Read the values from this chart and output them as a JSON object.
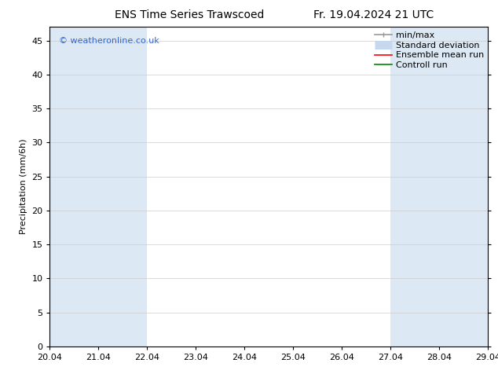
{
  "title_left": "ENS Time Series Trawscoed",
  "title_right": "Fr. 19.04.2024 21 UTC",
  "ylabel": "Precipitation (mm/6h)",
  "xlabel_ticks": [
    "20.04",
    "21.04",
    "22.04",
    "23.04",
    "24.04",
    "25.04",
    "26.04",
    "27.04",
    "28.04",
    "29.04"
  ],
  "yticks": [
    0,
    5,
    10,
    15,
    20,
    25,
    30,
    35,
    40,
    45
  ],
  "ylim": [
    0,
    47
  ],
  "xlim": [
    0,
    9
  ],
  "background_color": "#ffffff",
  "plot_bg_color": "#ffffff",
  "watermark": "© weatheronline.co.uk",
  "watermark_color": "#3366cc",
  "shaded_columns": [
    {
      "x_start": 0.0,
      "x_end": 1.0,
      "color": "#dce9f5"
    },
    {
      "x_start": 1.0,
      "x_end": 2.0,
      "color": "#dce9f5"
    },
    {
      "x_start": 7.0,
      "x_end": 8.0,
      "color": "#dce9f5"
    },
    {
      "x_start": 8.0,
      "x_end": 9.0,
      "color": "#dce9f5"
    }
  ],
  "legend_entries": [
    {
      "label": "min/max",
      "color": "#999999",
      "lw": 1.2,
      "ls": "-"
    },
    {
      "label": "Standard deviation",
      "color": "#c5d8ee",
      "lw": 8,
      "ls": "-"
    },
    {
      "label": "Ensemble mean run",
      "color": "#ff0000",
      "lw": 1.2,
      "ls": "-"
    },
    {
      "label": "Controll run",
      "color": "#008800",
      "lw": 1.2,
      "ls": "-"
    }
  ],
  "grid_color": "#cccccc",
  "tick_color": "#000000",
  "axis_color": "#000000",
  "font_size_title": 10,
  "font_size_ticks": 8,
  "font_size_ylabel": 8,
  "font_size_legend": 8,
  "font_size_watermark": 8
}
